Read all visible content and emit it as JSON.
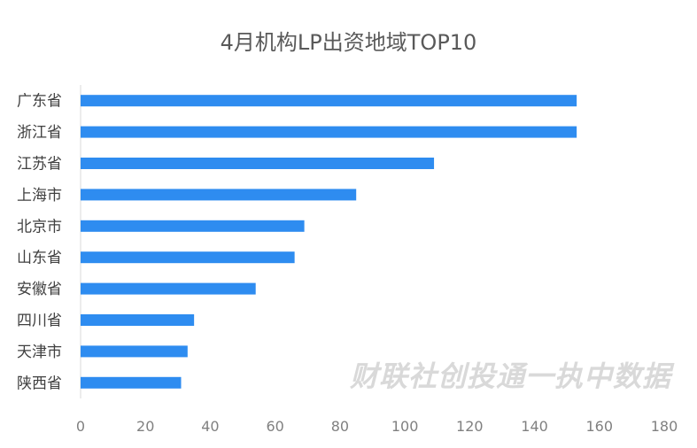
{
  "chart_data": {
    "type": "bar",
    "orientation": "horizontal",
    "title": "4月机构LP出资地域TOP10",
    "categories": [
      "广东省",
      "浙江省",
      "江苏省",
      "上海市",
      "北京市",
      "山东省",
      "安徽省",
      "四川省",
      "天津市",
      "陕西省"
    ],
    "values": [
      153,
      153,
      109,
      85,
      69,
      66,
      54,
      35,
      33,
      31
    ],
    "xlim": [
      0,
      180
    ],
    "xticks": [
      0,
      20,
      40,
      60,
      80,
      100,
      120,
      140,
      160,
      180
    ],
    "xlabel": "",
    "ylabel": "",
    "grid": false,
    "bar_color": "#2e8cf0"
  },
  "watermark": "财联社创投通一执中数据"
}
